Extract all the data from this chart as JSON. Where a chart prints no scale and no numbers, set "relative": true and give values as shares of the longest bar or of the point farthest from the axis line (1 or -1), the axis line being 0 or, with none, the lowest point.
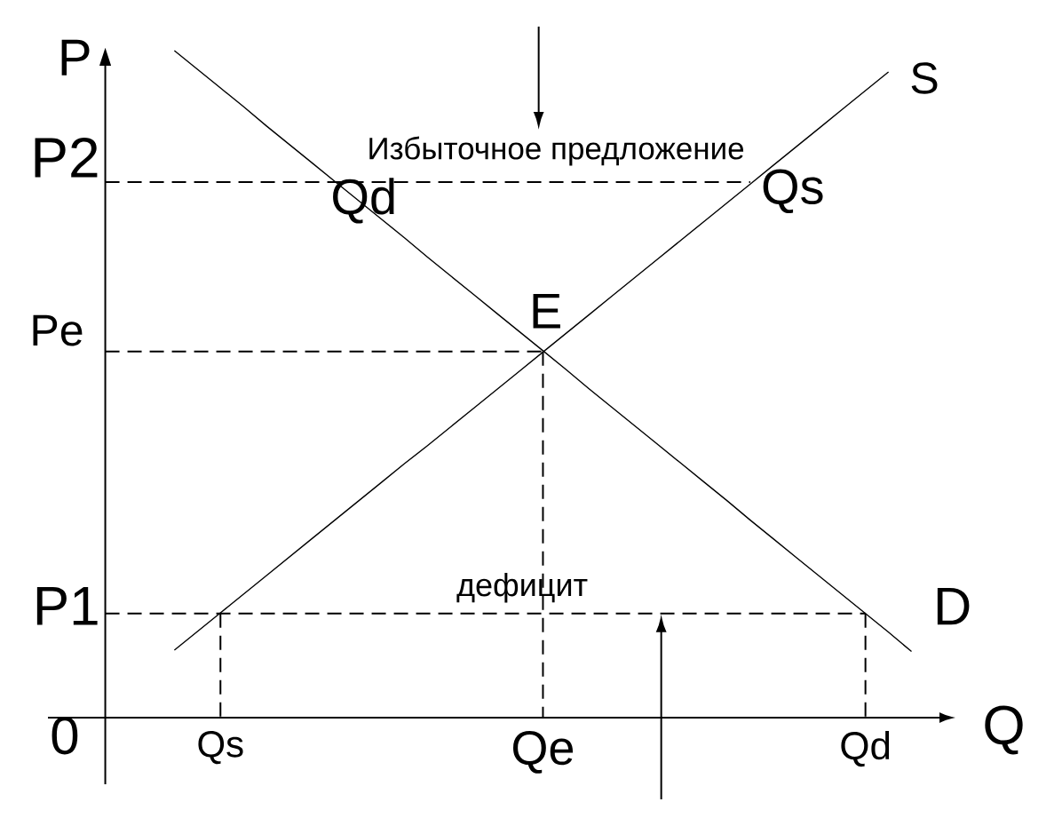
{
  "chart_data": {
    "type": "line",
    "relative": true,
    "xlabel": "Q",
    "ylabel": "P",
    "marker": "none",
    "categories": [
      null,
      null,
      null,
      null,
      null,
      "Qs",
      null,
      null,
      null,
      null,
      null,
      null,
      null,
      null,
      null,
      null,
      null,
      null,
      null,
      "Qe",
      null,
      null,
      null,
      null,
      null,
      null,
      null,
      null,
      null,
      null,
      null,
      null,
      null,
      "Qd",
      null,
      null
    ],
    "series": [
      {
        "name": "S",
        "color": "#000000",
        "line_style": "solid",
        "values": [
          null,
          null,
          null,
          0.101,
          0.129,
          0.157,
          0.185,
          0.213,
          0.241,
          0.269,
          0.297,
          0.325,
          0.353,
          0.381,
          0.408,
          0.436,
          0.464,
          0.492,
          0.52,
          0.548,
          0.576,
          0.604,
          0.632,
          0.66,
          0.688,
          0.716,
          0.744,
          0.772,
          0.8,
          0.828,
          0.856,
          0.884,
          0.912,
          0.94,
          0.968,
          null
        ]
      },
      {
        "name": "D",
        "color": "#000000",
        "line_style": "solid",
        "values": [
          null,
          null,
          null,
          1.0,
          0.972,
          0.944,
          0.916,
          0.887,
          0.859,
          0.831,
          0.803,
          0.775,
          0.747,
          0.719,
          0.69,
          0.662,
          0.634,
          0.606,
          0.578,
          0.55,
          0.522,
          0.493,
          0.465,
          0.437,
          0.409,
          0.381,
          0.353,
          0.325,
          0.296,
          0.268,
          0.24,
          0.212,
          0.184,
          0.156,
          0.128,
          0.099
        ]
      },
      {
        "color": "#000000",
        "line_style": "dashed",
        "values": [
          0.803,
          0.803,
          0.803,
          0.803,
          0.803,
          0.803,
          0.803,
          0.803,
          0.803,
          0.803,
          0.803,
          0.803,
          0.803,
          0.803,
          0.803,
          0.803,
          0.803,
          0.803,
          0.803,
          0.803,
          0.803,
          0.803,
          0.803,
          0.803,
          0.803,
          0.803,
          0.803,
          0.803,
          0.803,
          null,
          null,
          null,
          null,
          null,
          null,
          null
        ]
      },
      {
        "color": "#000000",
        "line_style": "dashed",
        "values": [
          0.549,
          0.549,
          0.549,
          0.549,
          0.549,
          0.549,
          0.549,
          0.549,
          0.549,
          0.549,
          0.549,
          0.549,
          0.549,
          0.549,
          0.549,
          0.549,
          0.549,
          0.549,
          0.549,
          0.549,
          null,
          null,
          null,
          null,
          null,
          null,
          null,
          null,
          null,
          null,
          null,
          null,
          null,
          null,
          null,
          null
        ]
      },
      {
        "color": "#000000",
        "line_style": "dashed",
        "values": [
          0.156,
          0.156,
          0.156,
          0.156,
          0.156,
          0.156,
          0.156,
          0.156,
          0.156,
          0.156,
          0.156,
          0.156,
          0.156,
          0.156,
          0.156,
          0.156,
          0.156,
          0.156,
          0.156,
          0.156,
          0.156,
          0.156,
          0.156,
          0.156,
          0.156,
          0.156,
          0.156,
          0.156,
          0.156,
          0.156,
          0.156,
          0.156,
          0.156,
          0.156,
          null,
          null
        ]
      },
      {
        "color": "#000000",
        "line_style": "dashed",
        "x": [
          "Qs",
          "Qs"
        ],
        "values": [
          0.156,
          0
        ]
      },
      {
        "color": "#000000",
        "line_style": "dashed",
        "x": [
          "Qe",
          "Qe"
        ],
        "values": [
          0.549,
          0
        ]
      },
      {
        "color": "#000000",
        "line_style": "dashed",
        "x": [
          "Qd",
          "Qd"
        ],
        "values": [
          0.156,
          0
        ]
      }
    ],
    "annotations": [
      "P2",
      "Pe",
      "P1",
      "0",
      {
        "text": "E",
        "x": "Qe",
        "y": 0.549
      },
      "Qd",
      "Qs",
      {
        "text": "Избыточное предложение",
        "x": "Qe",
        "y": 0.803
      },
      {
        "text": "дефицит",
        "x": "Qe",
        "y": 0.156
      }
    ]
  }
}
